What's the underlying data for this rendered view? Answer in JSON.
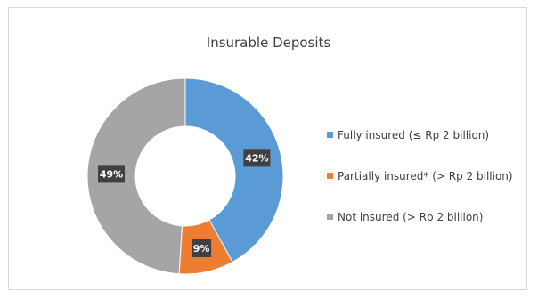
{
  "chart_data": {
    "type": "pie",
    "variant": "donut",
    "title": "Insurable Deposits",
    "legend_position": "right",
    "slices": [
      {
        "label": "Fully insured (≤ Rp 2 billion)",
        "value": 42,
        "data_label": "42%",
        "color": "#5b9bd5"
      },
      {
        "label": "Partially insured* (> Rp 2 billion)",
        "value": 9,
        "data_label": "9%",
        "color": "#ed7d31"
      },
      {
        "label": "Not insured (> Rp 2 billion)",
        "value": 49,
        "data_label": "49%",
        "color": "#a5a5a5"
      }
    ]
  }
}
